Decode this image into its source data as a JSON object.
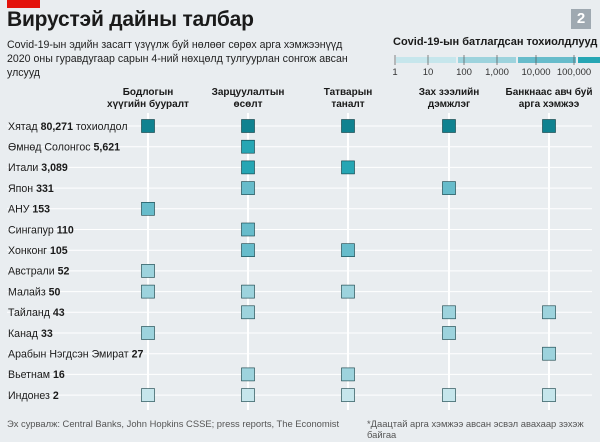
{
  "header": {
    "title": "Вирустэй дайны талбар",
    "subtitle_line1": "Covid-19-ын эдийн засагт үзүүлж буй нөлөөг сөрөх арга хэмжээнүүд",
    "subtitle_line2": "2020 оны гуравдугаар сарын 4-ний нөхцөлд тулгуурлан сонгож авсан улсууд",
    "badge": "2"
  },
  "legend": {
    "title": "Covid-19-ын батлагдсан тохиолдлууд",
    "ticks": [
      "1",
      "10",
      "100",
      "1,000",
      "10,000",
      "100,000"
    ],
    "colors": [
      "#c6e6ec",
      "#9dd3dd",
      "#67bccb",
      "#26a6b4",
      "#108290",
      "#0a5560"
    ]
  },
  "footer": {
    "source": "Эх сурвалж: Central Banks, John Hopkins CSSE; press reports, The Economist",
    "note": "*Даацтай арга хэмжээ авсан эсвэл авахаар зэхэж байгаа"
  },
  "chart_data": {
    "type": "heatmap",
    "columns": [
      {
        "line1": "Бодлогын",
        "line2": "хүүгийн бууралт"
      },
      {
        "line1": "Зарцуулалтын",
        "line2": "өсөлт"
      },
      {
        "line1": "Татварын",
        "line2": "таналт"
      },
      {
        "line1": "Зах зээлийн",
        "line2": "дэмжлэг"
      },
      {
        "line1": "Банкнаас авч буй",
        "line2": "арга хэмжээ"
      }
    ],
    "rows": [
      {
        "name": "Хятад",
        "cases_label": "80,271",
        "suffix": "тохиолдол",
        "cases": 80271,
        "measures": [
          1,
          1,
          1,
          1,
          1
        ]
      },
      {
        "name": "Өмнөд Солонгос",
        "cases_label": "5,621",
        "suffix": "",
        "cases": 5621,
        "measures": [
          0,
          1,
          0,
          0,
          0
        ]
      },
      {
        "name": "Итали",
        "cases_label": "3,089",
        "suffix": "",
        "cases": 3089,
        "measures": [
          0,
          1,
          1,
          0,
          0
        ]
      },
      {
        "name": "Япон",
        "cases_label": "331",
        "suffix": "",
        "cases": 331,
        "measures": [
          0,
          1,
          0,
          1,
          0
        ]
      },
      {
        "name": "АНУ",
        "cases_label": "153",
        "suffix": "",
        "cases": 153,
        "measures": [
          1,
          0,
          0,
          0,
          0
        ]
      },
      {
        "name": "Сингапур",
        "cases_label": "110",
        "suffix": "",
        "cases": 110,
        "measures": [
          0,
          1,
          0,
          0,
          0
        ]
      },
      {
        "name": "Хонконг",
        "cases_label": "105",
        "suffix": "",
        "cases": 105,
        "measures": [
          0,
          1,
          1,
          0,
          0
        ]
      },
      {
        "name": "Австрали",
        "cases_label": "52",
        "suffix": "",
        "cases": 52,
        "measures": [
          1,
          0,
          0,
          0,
          0
        ]
      },
      {
        "name": "Малайз",
        "cases_label": "50",
        "suffix": "",
        "cases": 50,
        "measures": [
          1,
          1,
          1,
          0,
          0
        ]
      },
      {
        "name": "Тайланд",
        "cases_label": "43",
        "suffix": "",
        "cases": 43,
        "measures": [
          0,
          1,
          0,
          1,
          1
        ]
      },
      {
        "name": "Канад",
        "cases_label": "33",
        "suffix": "",
        "cases": 33,
        "measures": [
          1,
          0,
          0,
          1,
          0
        ]
      },
      {
        "name": "Арабын Нэгдсэн Эмират",
        "cases_label": "27",
        "suffix": "",
        "cases": 27,
        "measures": [
          0,
          0,
          0,
          0,
          1
        ]
      },
      {
        "name": "Вьетнам",
        "cases_label": "16",
        "suffix": "",
        "cases": 16,
        "measures": [
          0,
          1,
          1,
          0,
          0
        ]
      },
      {
        "name": "Индонез",
        "cases_label": "2",
        "suffix": "",
        "cases": 2,
        "measures": [
          1,
          1,
          1,
          1,
          1
        ]
      }
    ]
  }
}
